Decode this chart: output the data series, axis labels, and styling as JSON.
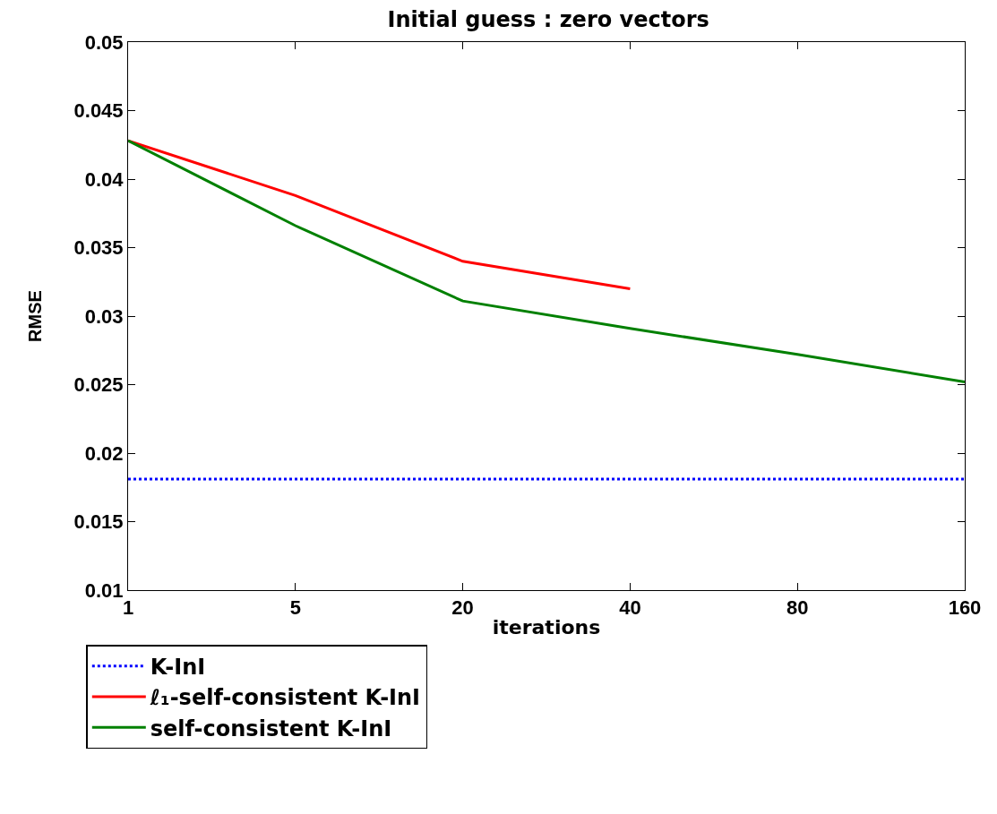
{
  "chart_data": {
    "type": "line",
    "title": "Initial guess : zero vectors",
    "xlabel": "iterations",
    "ylabel": "RMSE",
    "categories": [
      "1",
      "5",
      "20",
      "40",
      "80",
      "160"
    ],
    "ylim": [
      0.01,
      0.05
    ],
    "yticks": [
      0.01,
      0.015,
      0.02,
      0.025,
      0.03,
      0.035,
      0.04,
      0.045,
      0.05
    ],
    "series": [
      {
        "name": "K-InI",
        "color": "#0000ff",
        "line_style": "dotted",
        "values": [
          0.0181,
          0.0181,
          0.0181,
          0.0181,
          0.0181,
          0.0181
        ]
      },
      {
        "name": "ℓ₁-self-consistent K-InI",
        "color": "#ff0000",
        "values": [
          0.0428,
          0.0388,
          0.034,
          0.032,
          null,
          null
        ]
      },
      {
        "name": "self-consistent K-InI",
        "color": "#008000",
        "values": [
          0.0428,
          0.0366,
          0.0311,
          0.0291,
          0.0272,
          0.0252
        ]
      }
    ],
    "grid": false,
    "legend": "bottom",
    "marker": "none",
    "line_style": "solid"
  }
}
